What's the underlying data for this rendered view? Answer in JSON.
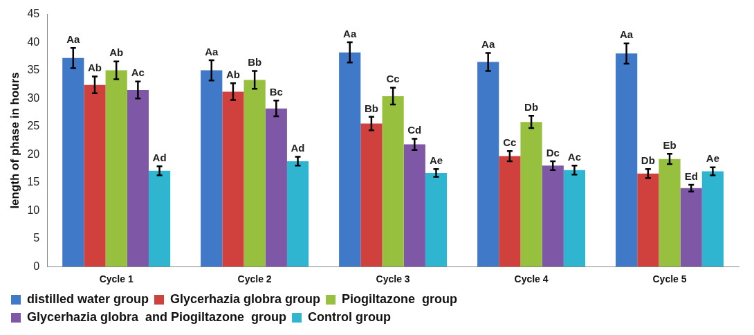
{
  "chart_data": {
    "type": "bar",
    "ylabel": "length of phase in hours",
    "categories": [
      "Cycle 1",
      "Cycle 2",
      "Cycle 3",
      "Cycle 4",
      "Cycle 5"
    ],
    "ylim": [
      0,
      45
    ],
    "yticks": [
      0,
      5,
      10,
      15,
      20,
      25,
      30,
      35,
      40,
      45
    ],
    "legend": "bottom",
    "series": [
      {
        "name": "distilled water group",
        "color": "#3f79c8",
        "values": [
          37.2,
          35,
          38.2,
          36.5,
          38
        ],
        "errors": [
          1.8,
          1.8,
          1.8,
          1.6,
          1.8
        ],
        "value_labels": [
          "Aa",
          "Aa",
          "Aa",
          "Aa",
          "Aa"
        ]
      },
      {
        "name": "Glycerhazia globra group",
        "color": "#d0413e",
        "values": [
          32.4,
          31.2,
          25.5,
          19.7,
          16.6
        ],
        "errors": [
          1.5,
          1.5,
          1.2,
          0.9,
          0.8
        ],
        "value_labels": [
          "Ab",
          "Ab",
          "Bb",
          "Cc",
          "Db"
        ]
      },
      {
        "name": "Piogiltazone  group",
        "color": "#97c03f",
        "values": [
          35,
          33.3,
          30.4,
          25.8,
          19.2
        ],
        "errors": [
          1.6,
          1.6,
          1.5,
          1.1,
          0.9
        ],
        "value_labels": [
          "Ab",
          "Bb",
          "Cc",
          "Db",
          "Eb"
        ]
      },
      {
        "name": "Glycerhazia globra  and Piogiltazone  group",
        "color": "#7e57a6",
        "values": [
          31.5,
          28.2,
          21.8,
          18,
          14
        ],
        "errors": [
          1.5,
          1.4,
          1,
          0.8,
          0.6
        ],
        "value_labels": [
          "Ac",
          "Bc",
          "Cd",
          "Dc",
          "Ed"
        ]
      },
      {
        "name": "Control group",
        "color": "#2fb5d0",
        "values": [
          17.1,
          18.8,
          16.7,
          17.2,
          17
        ],
        "errors": [
          0.8,
          0.8,
          0.7,
          0.8,
          0.7
        ],
        "value_labels": [
          "Ad",
          "Ad",
          "Ae",
          "Ac",
          "Ae"
        ]
      }
    ]
  }
}
